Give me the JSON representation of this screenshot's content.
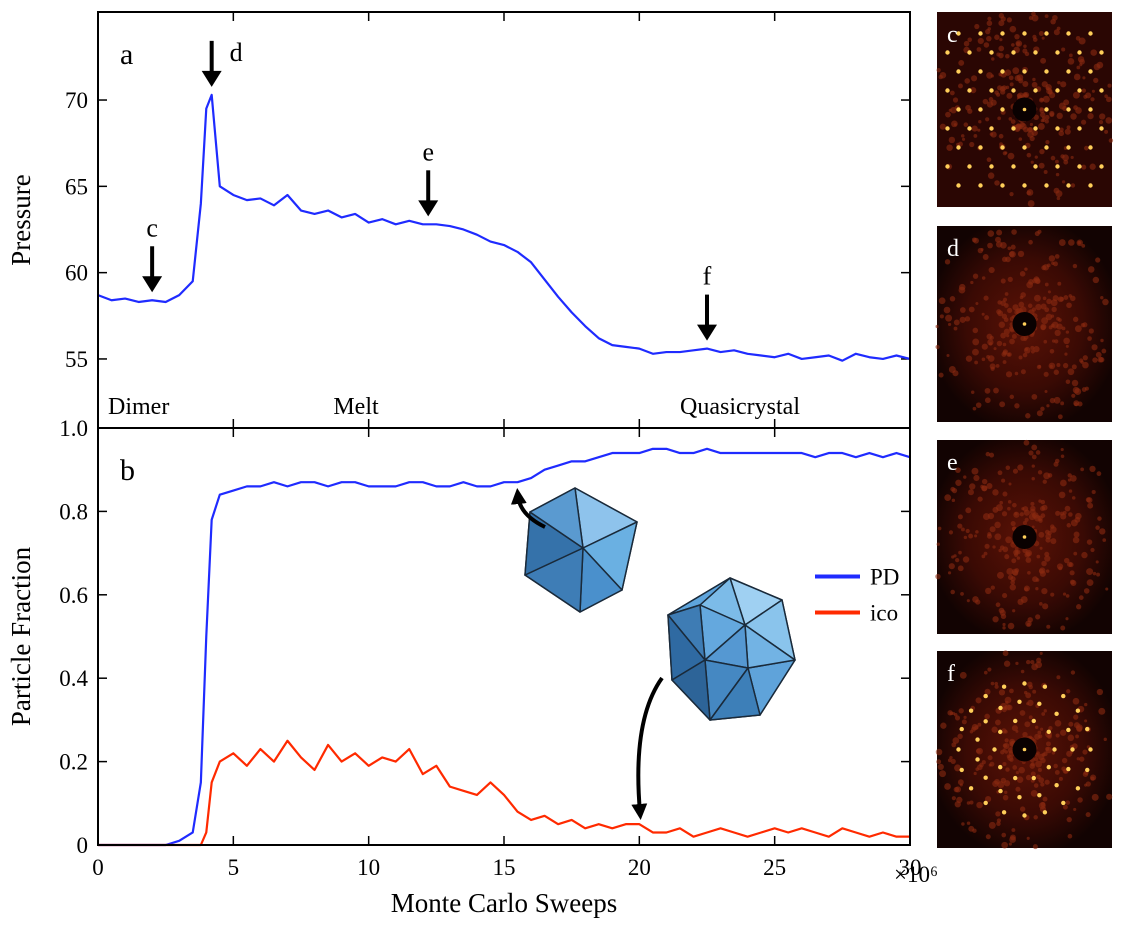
{
  "chart_data": [
    {
      "type": "line",
      "panel_label": "a",
      "y_label": "Pressure",
      "region_labels": [
        "Dimer",
        "Melt",
        "Quasicrystal"
      ],
      "xlim": [
        0,
        30
      ],
      "ylim": [
        51,
        75.1
      ],
      "yticks": [
        55,
        60,
        65,
        70
      ],
      "x": [
        0,
        0.5,
        1,
        1.5,
        2,
        2.5,
        3,
        3.5,
        3.8,
        4.0,
        4.2,
        4.5,
        5,
        5.5,
        6,
        6.5,
        7,
        7.5,
        8,
        8.5,
        9,
        9.5,
        10,
        10.5,
        11,
        11.5,
        12,
        12.5,
        13,
        13.5,
        14,
        14.5,
        15,
        15.5,
        16,
        16.5,
        17,
        17.5,
        18,
        18.5,
        19,
        19.5,
        20,
        20.5,
        21,
        21.5,
        22,
        22.5,
        23,
        23.5,
        24,
        24.5,
        25,
        25.5,
        26,
        26.5,
        27,
        27.5,
        28,
        28.5,
        29,
        29.5,
        30
      ],
      "series": [
        {
          "color": "#1f2bff",
          "values": [
            58.7,
            58.4,
            58.5,
            58.3,
            58.4,
            58.3,
            58.7,
            59.5,
            64,
            69.5,
            70.3,
            65,
            64.5,
            64.2,
            64.3,
            63.9,
            64.5,
            63.6,
            63.4,
            63.6,
            63.2,
            63.4,
            62.9,
            63.1,
            62.8,
            63.0,
            62.8,
            62.8,
            62.7,
            62.5,
            62.2,
            61.8,
            61.6,
            61.2,
            60.6,
            59.6,
            58.6,
            57.7,
            56.9,
            56.2,
            55.8,
            55.7,
            55.6,
            55.3,
            55.4,
            55.4,
            55.5,
            55.6,
            55.4,
            55.5,
            55.3,
            55.2,
            55.1,
            55.3,
            55.0,
            55.1,
            55.2,
            54.9,
            55.3,
            55.1,
            55.0,
            55.2,
            55.0
          ]
        }
      ],
      "annotations": [
        {
          "text": "c",
          "x": 2
        },
        {
          "text": "d",
          "x": 4.2
        },
        {
          "text": "e",
          "x": 12.2
        },
        {
          "text": "f",
          "x": 22.5
        }
      ]
    },
    {
      "type": "line",
      "panel_label": "b",
      "y_label": "Particle Fraction",
      "x_label": "Monte Carlo Sweeps",
      "x_multiplier": "×10⁶",
      "xlim": [
        0,
        30
      ],
      "ylim": [
        0,
        1.0
      ],
      "xticks": [
        0,
        5,
        10,
        15,
        20,
        25,
        30
      ],
      "yticks": [
        0,
        0.2,
        0.4,
        0.6,
        0.8,
        {
          "value": 1.0,
          "label": "1.0"
        }
      ],
      "legend": "center right",
      "x": [
        0,
        0.5,
        1,
        1.5,
        2,
        2.5,
        3,
        3.5,
        3.8,
        4.0,
        4.2,
        4.5,
        5,
        5.5,
        6,
        6.5,
        7,
        7.5,
        8,
        8.5,
        9,
        9.5,
        10,
        10.5,
        11,
        11.5,
        12,
        12.5,
        13,
        13.5,
        14,
        14.5,
        15,
        15.5,
        16,
        16.5,
        17,
        17.5,
        18,
        18.5,
        19,
        19.5,
        20,
        20.5,
        21,
        21.5,
        22,
        22.5,
        23,
        23.5,
        24,
        24.5,
        25,
        25.5,
        26,
        26.5,
        27,
        27.5,
        28,
        28.5,
        29,
        29.5,
        30
      ],
      "series": [
        {
          "name": "PD",
          "color": "#1f2bff",
          "values": [
            0,
            0,
            0,
            0,
            0,
            0,
            0.01,
            0.03,
            0.15,
            0.5,
            0.78,
            0.84,
            0.85,
            0.86,
            0.86,
            0.87,
            0.86,
            0.87,
            0.87,
            0.86,
            0.87,
            0.87,
            0.86,
            0.86,
            0.86,
            0.87,
            0.87,
            0.86,
            0.86,
            0.87,
            0.86,
            0.86,
            0.87,
            0.87,
            0.88,
            0.9,
            0.91,
            0.92,
            0.92,
            0.93,
            0.94,
            0.94,
            0.94,
            0.95,
            0.95,
            0.94,
            0.94,
            0.95,
            0.94,
            0.94,
            0.94,
            0.94,
            0.94,
            0.94,
            0.94,
            0.93,
            0.94,
            0.94,
            0.93,
            0.94,
            0.93,
            0.94,
            0.93
          ]
        },
        {
          "name": "ico",
          "color": "#ff2a00",
          "values": [
            0,
            0,
            0,
            0,
            0,
            0,
            0,
            0,
            0.0,
            0.03,
            0.15,
            0.2,
            0.22,
            0.19,
            0.23,
            0.2,
            0.25,
            0.21,
            0.18,
            0.24,
            0.2,
            0.22,
            0.19,
            0.21,
            0.2,
            0.23,
            0.17,
            0.19,
            0.14,
            0.13,
            0.12,
            0.15,
            0.12,
            0.08,
            0.06,
            0.07,
            0.05,
            0.06,
            0.04,
            0.05,
            0.04,
            0.05,
            0.05,
            0.03,
            0.03,
            0.04,
            0.02,
            0.03,
            0.04,
            0.03,
            0.02,
            0.03,
            0.04,
            0.03,
            0.04,
            0.03,
            0.02,
            0.04,
            0.03,
            0.02,
            0.03,
            0.02,
            0.02
          ]
        }
      ]
    }
  ],
  "side_panels": [
    "c",
    "d",
    "e",
    "f"
  ]
}
